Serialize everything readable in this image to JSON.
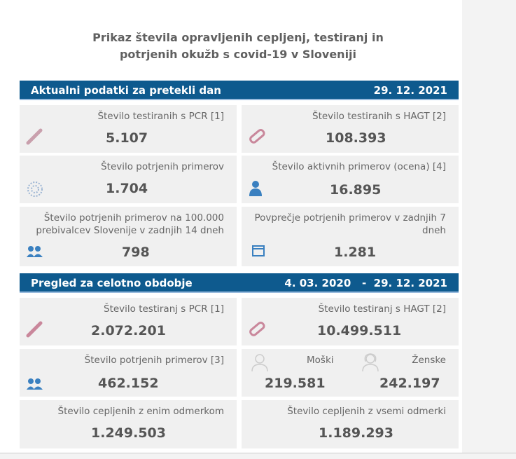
{
  "title_line1": "Prikaz števila opravljenih cepljenj, testiranj in",
  "title_line2": "potrjenih okužb s covid-19 v Sloveniji",
  "daily": {
    "header": "Aktualni podatki za pretekli dan",
    "date": "29. 12. 2021",
    "pcr_label": "Število testiranih s PCR [1]",
    "pcr_value": "5.107",
    "hagt_label": "Število testiranih s HAGT [2]",
    "hagt_value": "108.393",
    "confirmed_label": "Število potrjenih primerov",
    "confirmed_value": "1.704",
    "active_label": "Število aktivnih primerov (ocena) [4]",
    "active_value": "16.895",
    "per100k_label": "Število potrjenih primerov na 100.000 prebivalcev Slovenije v zadnjih 14 dneh",
    "per100k_value": "798",
    "avg7_label": "Povprečje potrjenih primerov v zadnjih 7 dneh",
    "avg7_value": "1.281"
  },
  "total": {
    "header": "Pregled za celotno obdobje",
    "date_from": "4. 03. 2020",
    "dash": "-",
    "date_to": "29. 12. 2021",
    "pcr_label": "Število testiranj s PCR [1]",
    "pcr_value": "2.072.201",
    "hagt_label": "Število testiranj s HAGT [2]",
    "hagt_value": "10.499.511",
    "confirmed_label": "Število potrjenih primerov [3]",
    "confirmed_value": "462.152",
    "male_label": "Moški",
    "male_value": "219.581",
    "female_label": "Ženske",
    "female_value": "242.197",
    "vacc1_label": "Število cepljenih z enim odmerkom",
    "vacc1_value": "1.249.503",
    "vaccall_label": "Število cepljenih z vsemi odmerki",
    "vaccall_value": "1.189.293"
  },
  "colors": {
    "header": "#0e5a8e",
    "card": "#f0f0f0"
  }
}
